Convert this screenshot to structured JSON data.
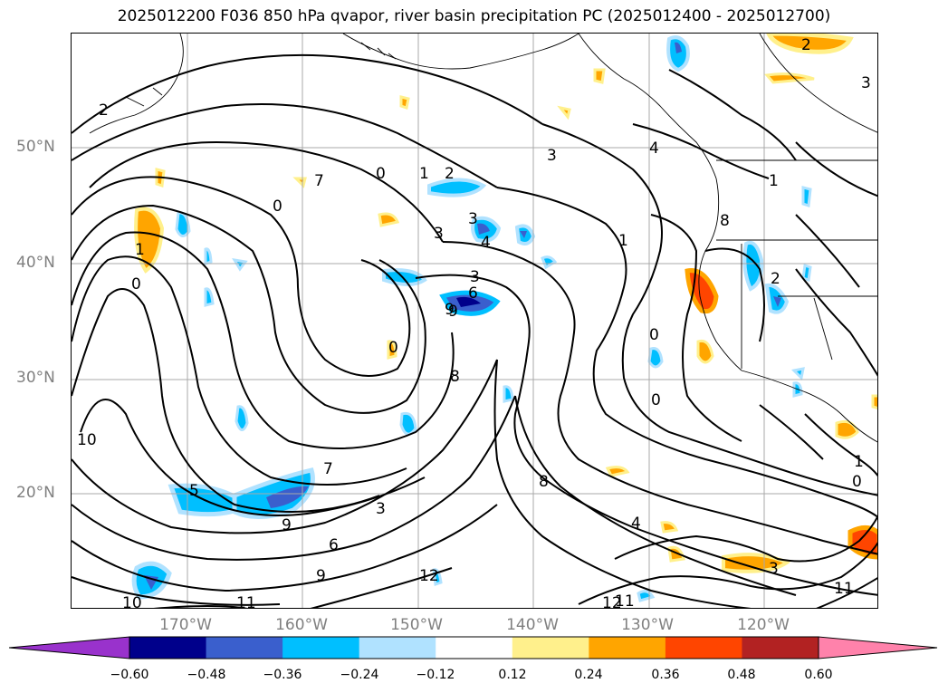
{
  "title": "2025012200 F036 850 hPa qvapor, river basin precipitation PC (2025012400 - 2025012700)",
  "lat_labels": [
    "50°N",
    "40°N",
    "30°N",
    "20°N"
  ],
  "lon_labels": [
    "170°W",
    "160°W",
    "150°W",
    "140°W",
    "130°W",
    "120°W"
  ],
  "colorbar": {
    "ticks": [
      "−0.60",
      "−0.48",
      "−0.36",
      "−0.24",
      "−0.12",
      "0.12",
      "0.24",
      "0.36",
      "0.48",
      "0.60"
    ],
    "colors": [
      "#9932cc",
      "#00008b",
      "#3a5fcd",
      "#00bfff",
      "#b0e2ff",
      "#ffffff",
      "#fff08c",
      "#ffa500",
      "#ff4500",
      "#b22222",
      "#ff82ab"
    ]
  },
  "contour_labels": [
    "2",
    "3",
    "0",
    "1",
    "2",
    "3",
    "4",
    "3",
    "4",
    "1",
    "3",
    "6",
    "9",
    "8",
    "0",
    "7",
    "5",
    "9",
    "3",
    "7",
    "6",
    "9",
    "12",
    "10",
    "11",
    "8",
    "4",
    "0",
    "0",
    "2",
    "1",
    "11",
    "1",
    "0",
    "3",
    "2",
    "0",
    "1",
    "10",
    "9",
    "12",
    "11",
    "3",
    "0",
    "8"
  ],
  "colors": {
    "grid": "#a8a8a8",
    "contour": "#000000",
    "tick_label": "#808080"
  }
}
